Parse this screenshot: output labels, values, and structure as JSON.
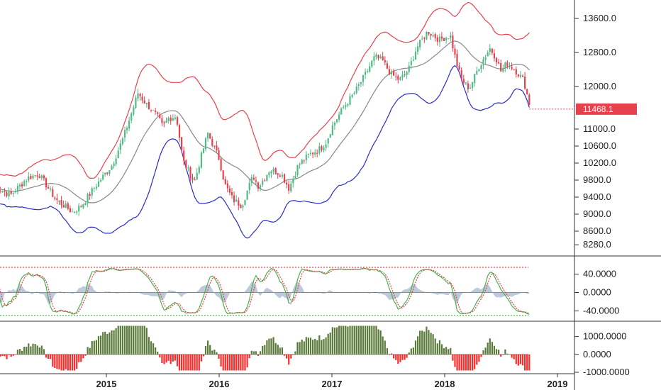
{
  "chart_data": [
    {
      "type": "candlestick",
      "name_in_ui": "price",
      "ylim": [
        8100,
        13900
      ],
      "y_ticks": [
        {
          "value": 13600,
          "label": "13600.0"
        },
        {
          "value": 12800,
          "label": "12800.0"
        },
        {
          "value": 12000,
          "label": "12000.0"
        },
        {
          "value": 11000,
          "label": "11000.0"
        },
        {
          "value": 10600,
          "label": "10600.0"
        },
        {
          "value": 10200,
          "label": "10200.0"
        },
        {
          "value": 9800,
          "label": "9800.0"
        },
        {
          "value": 9400,
          "label": "9400.0"
        },
        {
          "value": 9000,
          "label": "9000.0"
        },
        {
          "value": 8600,
          "label": "8600.0"
        },
        {
          "value": 8280,
          "label": "8280.0"
        }
      ],
      "last_price": {
        "value": 11468.1,
        "label": "11468.1",
        "color": "#e8414e"
      },
      "close_anchors": [
        [
          2014.0,
          9650
        ],
        [
          2014.15,
          9450
        ],
        [
          2014.3,
          9850
        ],
        [
          2014.4,
          9950
        ],
        [
          2014.55,
          9350
        ],
        [
          2014.7,
          9050
        ],
        [
          2014.78,
          9200
        ],
        [
          2014.9,
          9650
        ],
        [
          2015.05,
          10150
        ],
        [
          2015.15,
          10800
        ],
        [
          2015.22,
          11350
        ],
        [
          2015.28,
          11850
        ],
        [
          2015.35,
          11600
        ],
        [
          2015.45,
          11300
        ],
        [
          2015.5,
          11050
        ],
        [
          2015.55,
          11250
        ],
        [
          2015.62,
          11300
        ],
        [
          2015.68,
          10250
        ],
        [
          2015.78,
          9750
        ],
        [
          2015.85,
          10450
        ],
        [
          2015.9,
          10900
        ],
        [
          2016.0,
          10300
        ],
        [
          2016.05,
          9700
        ],
        [
          2016.12,
          9350
        ],
        [
          2016.2,
          9200
        ],
        [
          2016.3,
          9900
        ],
        [
          2016.35,
          9650
        ],
        [
          2016.45,
          10050
        ],
        [
          2016.55,
          9950
        ],
        [
          2016.62,
          9600
        ],
        [
          2016.7,
          10150
        ],
        [
          2016.8,
          10400
        ],
        [
          2016.9,
          10550
        ],
        [
          2016.95,
          10700
        ],
        [
          2017.0,
          11050
        ],
        [
          2017.1,
          11500
        ],
        [
          2017.2,
          11850
        ],
        [
          2017.3,
          12300
        ],
        [
          2017.38,
          12700
        ],
        [
          2017.45,
          12600
        ],
        [
          2017.52,
          12300
        ],
        [
          2017.6,
          12150
        ],
        [
          2017.68,
          12400
        ],
        [
          2017.75,
          12900
        ],
        [
          2017.85,
          13300
        ],
        [
          2017.95,
          13100
        ],
        [
          2018.05,
          13200
        ],
        [
          2018.1,
          12600
        ],
        [
          2018.15,
          12150
        ],
        [
          2018.22,
          11950
        ],
        [
          2018.3,
          12450
        ],
        [
          2018.4,
          12900
        ],
        [
          2018.45,
          12700
        ],
        [
          2018.5,
          12350
        ],
        [
          2018.55,
          12550
        ],
        [
          2018.62,
          12400
        ],
        [
          2018.7,
          12150
        ],
        [
          2018.75,
          11600
        ]
      ],
      "colors": {
        "up": "#53b987",
        "down": "#e8414e",
        "upper_band": "#e8414e",
        "mid_band": "#888888",
        "lower_band": "#2b2bcc"
      }
    },
    {
      "type": "line",
      "name_in_ui": "oscillator",
      "ylim": [
        -58,
        72
      ],
      "y_ticks": [
        {
          "value": 40,
          "label": "40.0000"
        },
        {
          "value": 0,
          "label": "0.0000"
        },
        {
          "value": -40,
          "label": "-40.0000"
        }
      ],
      "upper_level": 55,
      "lower_level": -50,
      "colors": {
        "fast": "#4caf50",
        "slow": "#e8414e",
        "area": "#9fb4cc",
        "upper_level": "#e8414e",
        "lower_level": "#4caf50"
      }
    },
    {
      "type": "histogram",
      "name_in_ui": "momentum",
      "ylim": [
        -1000,
        1700
      ],
      "y_ticks": [
        {
          "value": 1000,
          "label": "1000.0000"
        },
        {
          "value": 0,
          "label": "0.0000"
        },
        {
          "value": -1000,
          "label": "-1000.0000"
        }
      ],
      "colors": {
        "positive": "#5a7a3a",
        "negative": "#ff2a2a"
      }
    }
  ],
  "x_axis": {
    "range": [
      2014.0,
      2019.0
    ],
    "ticks": [
      {
        "value": 2015,
        "label": "2015"
      },
      {
        "value": 2016,
        "label": "2016"
      },
      {
        "value": 2017,
        "label": "2017"
      },
      {
        "value": 2018,
        "label": "2018"
      },
      {
        "value": 2019,
        "label": "2019"
      }
    ]
  }
}
